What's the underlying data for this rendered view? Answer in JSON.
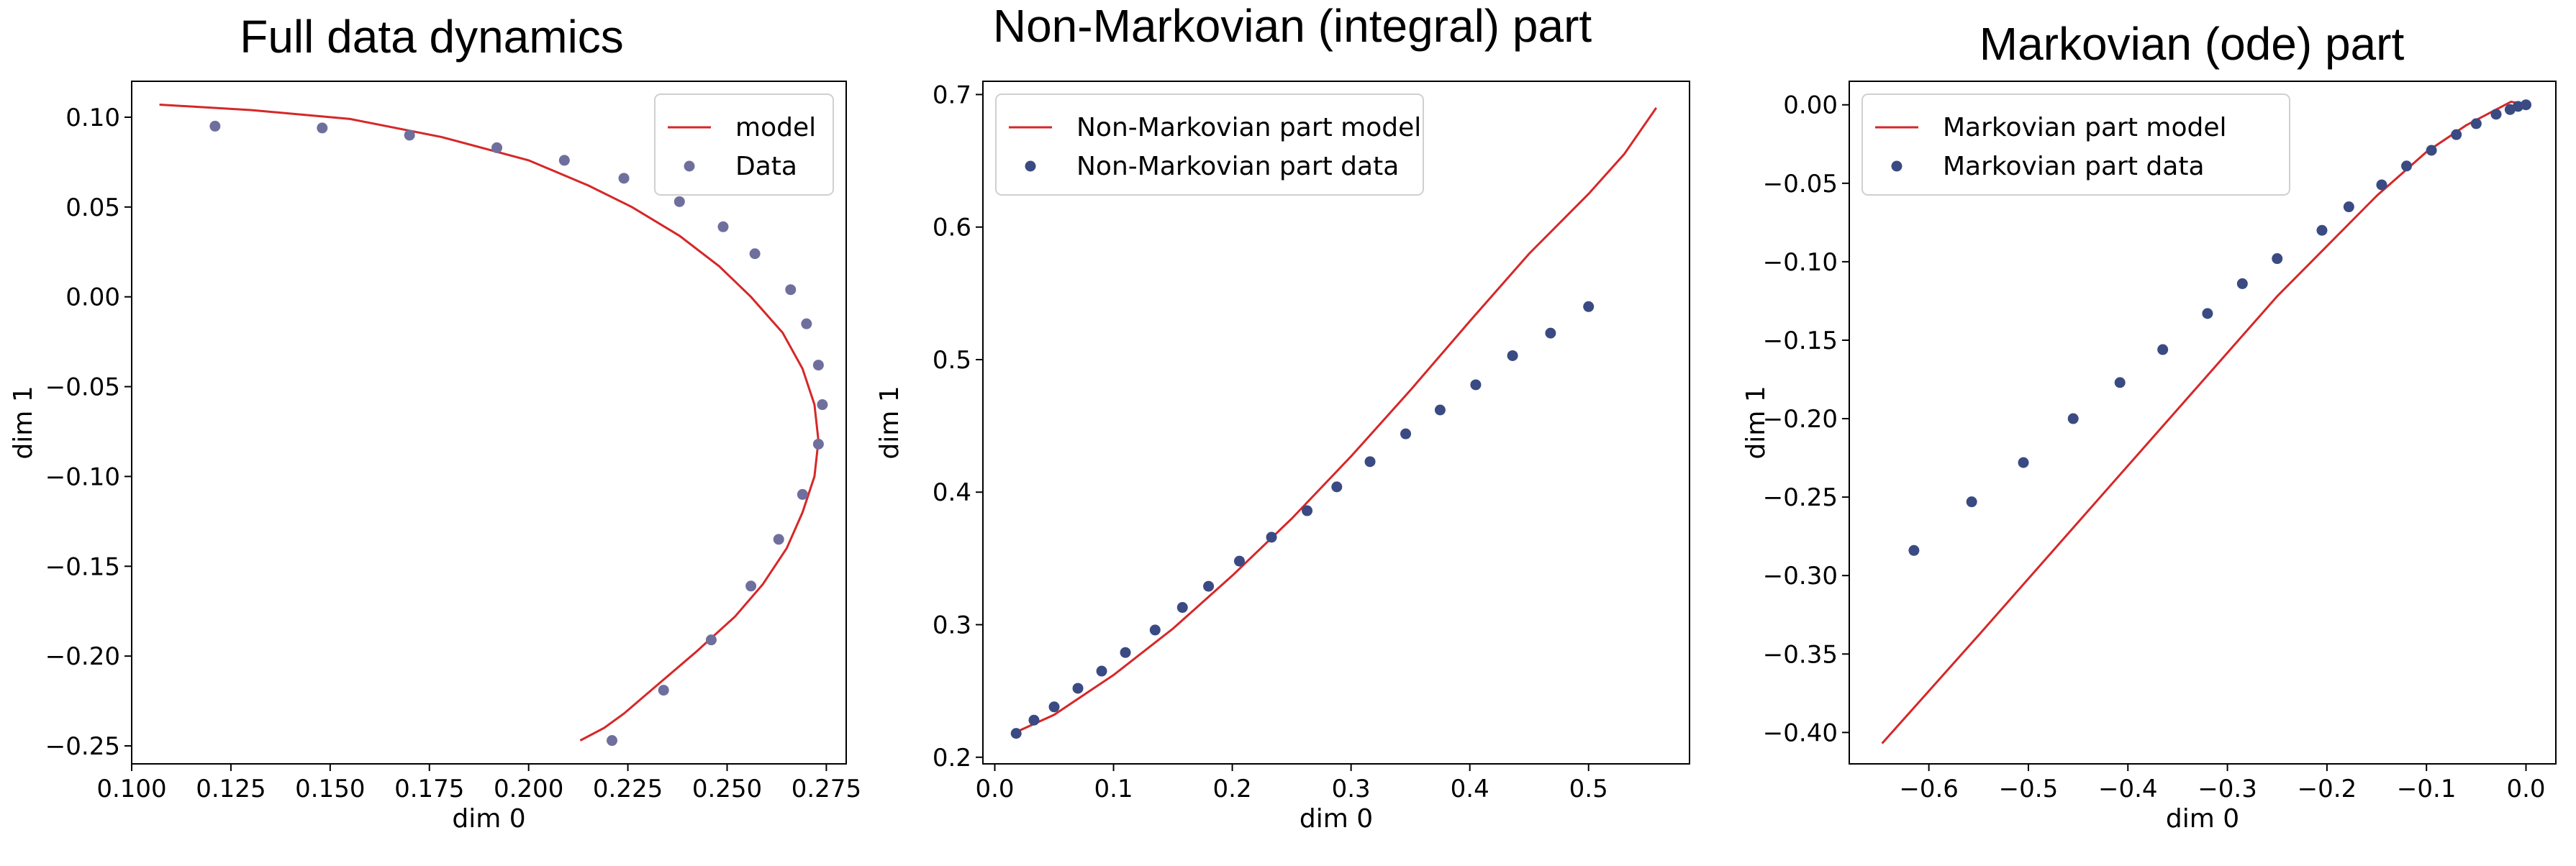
{
  "chart_data": [
    {
      "type": "scatter",
      "title": "Full data dynamics",
      "xlabel": "dim 0",
      "ylabel": "dim 1",
      "xlim": [
        0.1,
        0.28
      ],
      "ylim": [
        -0.26,
        0.12
      ],
      "xticks": [
        0.1,
        0.125,
        0.15,
        0.175,
        0.2,
        0.225,
        0.25,
        0.275
      ],
      "xtick_labels": [
        "0.100",
        "0.125",
        "0.150",
        "0.175",
        "0.200",
        "0.225",
        "0.250",
        "0.275"
      ],
      "yticks": [
        0.1,
        0.05,
        0.0,
        -0.05,
        -0.1,
        -0.15,
        -0.2,
        -0.25
      ],
      "ytick_labels": [
        "0.10",
        "0.05",
        "0.00",
        "−0.05",
        "−0.10",
        "−0.15",
        "−0.20",
        "−0.25"
      ],
      "grid": false,
      "legend_position": "top-right",
      "series": [
        {
          "name": "model",
          "kind": "line",
          "color": "#d62728",
          "points": [
            [
              0.107,
              0.107
            ],
            [
              0.13,
              0.104
            ],
            [
              0.155,
              0.099
            ],
            [
              0.178,
              0.089
            ],
            [
              0.2,
              0.076
            ],
            [
              0.215,
              0.062
            ],
            [
              0.226,
              0.05
            ],
            [
              0.238,
              0.034
            ],
            [
              0.248,
              0.017
            ],
            [
              0.256,
              0.0
            ],
            [
              0.264,
              -0.02
            ],
            [
              0.269,
              -0.04
            ],
            [
              0.272,
              -0.06
            ],
            [
              0.273,
              -0.08
            ],
            [
              0.272,
              -0.1
            ],
            [
              0.269,
              -0.12
            ],
            [
              0.265,
              -0.14
            ],
            [
              0.259,
              -0.16
            ],
            [
              0.252,
              -0.178
            ],
            [
              0.242,
              -0.198
            ],
            [
              0.233,
              -0.215
            ],
            [
              0.224,
              -0.232
            ],
            [
              0.219,
              -0.24
            ],
            [
              0.213,
              -0.247
            ]
          ]
        },
        {
          "name": "Data",
          "kind": "scatter",
          "color": "#6f6f9e",
          "points": [
            [
              0.121,
              0.095
            ],
            [
              0.148,
              0.094
            ],
            [
              0.17,
              0.09
            ],
            [
              0.192,
              0.083
            ],
            [
              0.209,
              0.076
            ],
            [
              0.224,
              0.066
            ],
            [
              0.238,
              0.053
            ],
            [
              0.249,
              0.039
            ],
            [
              0.257,
              0.024
            ],
            [
              0.266,
              0.004
            ],
            [
              0.27,
              -0.015
            ],
            [
              0.273,
              -0.038
            ],
            [
              0.274,
              -0.06
            ],
            [
              0.273,
              -0.082
            ],
            [
              0.269,
              -0.11
            ],
            [
              0.263,
              -0.135
            ],
            [
              0.256,
              -0.161
            ],
            [
              0.246,
              -0.191
            ],
            [
              0.234,
              -0.219
            ],
            [
              0.221,
              -0.247
            ]
          ]
        }
      ]
    },
    {
      "type": "scatter",
      "title": "Non-Markovian (integral) part",
      "xlabel": "dim 0",
      "ylabel": "dim 1",
      "xlim": [
        -0.01,
        0.585
      ],
      "ylim": [
        0.195,
        0.71
      ],
      "xticks": [
        0.0,
        0.1,
        0.2,
        0.3,
        0.4,
        0.5
      ],
      "xtick_labels": [
        "0.0",
        "0.1",
        "0.2",
        "0.3",
        "0.4",
        "0.5"
      ],
      "yticks": [
        0.2,
        0.3,
        0.4,
        0.5,
        0.6,
        0.7
      ],
      "ytick_labels": [
        "0.2",
        "0.3",
        "0.4",
        "0.5",
        "0.6",
        "0.7"
      ],
      "grid": false,
      "legend_position": "top-left",
      "series": [
        {
          "name": "Non-Markovian part model",
          "kind": "line",
          "color": "#d62728",
          "points": [
            [
              0.018,
              0.219
            ],
            [
              0.05,
              0.232
            ],
            [
              0.1,
              0.262
            ],
            [
              0.15,
              0.297
            ],
            [
              0.2,
              0.337
            ],
            [
              0.25,
              0.38
            ],
            [
              0.3,
              0.427
            ],
            [
              0.35,
              0.477
            ],
            [
              0.4,
              0.529
            ],
            [
              0.45,
              0.58
            ],
            [
              0.5,
              0.625
            ],
            [
              0.53,
              0.655
            ],
            [
              0.557,
              0.69
            ]
          ]
        },
        {
          "name": "Non-Markovian part data",
          "kind": "scatter",
          "color": "#3a4a82",
          "points": [
            [
              0.018,
              0.218
            ],
            [
              0.033,
              0.228
            ],
            [
              0.05,
              0.238
            ],
            [
              0.07,
              0.252
            ],
            [
              0.09,
              0.265
            ],
            [
              0.11,
              0.279
            ],
            [
              0.135,
              0.296
            ],
            [
              0.158,
              0.313
            ],
            [
              0.18,
              0.329
            ],
            [
              0.206,
              0.348
            ],
            [
              0.233,
              0.366
            ],
            [
              0.263,
              0.386
            ],
            [
              0.288,
              0.404
            ],
            [
              0.316,
              0.423
            ],
            [
              0.346,
              0.444
            ],
            [
              0.375,
              0.462
            ],
            [
              0.405,
              0.481
            ],
            [
              0.436,
              0.503
            ],
            [
              0.468,
              0.52
            ],
            [
              0.5,
              0.54
            ]
          ]
        }
      ]
    },
    {
      "type": "scatter",
      "title": "Markovian (ode) part",
      "xlabel": "dim 0",
      "ylabel": "dim 1",
      "xlim": [
        -0.68,
        0.03
      ],
      "ylim": [
        -0.42,
        0.015
      ],
      "xticks": [
        -0.6,
        -0.5,
        -0.4,
        -0.3,
        -0.2,
        -0.1,
        0.0
      ],
      "xtick_labels": [
        "−0.6",
        "−0.5",
        "−0.4",
        "−0.3",
        "−0.2",
        "−0.1",
        "0.0"
      ],
      "yticks": [
        0.0,
        -0.05,
        -0.1,
        -0.15,
        -0.2,
        -0.25,
        -0.3,
        -0.35,
        -0.4
      ],
      "ytick_labels": [
        "0.00",
        "−0.05",
        "−0.10",
        "−0.15",
        "−0.20",
        "−0.25",
        "−0.30",
        "−0.35",
        "−0.40"
      ],
      "grid": false,
      "legend_position": "top-left",
      "series": [
        {
          "name": "Markovian part model",
          "kind": "line",
          "color": "#d62728",
          "points": [
            [
              -0.647,
              -0.407
            ],
            [
              -0.55,
              -0.338
            ],
            [
              -0.45,
              -0.266
            ],
            [
              -0.35,
              -0.194
            ],
            [
              -0.25,
              -0.122
            ],
            [
              -0.15,
              -0.058
            ],
            [
              -0.1,
              -0.03
            ],
            [
              -0.06,
              -0.013
            ],
            [
              -0.03,
              -0.003
            ],
            [
              -0.015,
              0.002
            ],
            [
              0.0,
              0.0
            ]
          ]
        },
        {
          "name": "Markovian part data",
          "kind": "scatter",
          "color": "#3a4a82",
          "points": [
            [
              -0.615,
              -0.284
            ],
            [
              -0.557,
              -0.253
            ],
            [
              -0.505,
              -0.228
            ],
            [
              -0.455,
              -0.2
            ],
            [
              -0.408,
              -0.177
            ],
            [
              -0.365,
              -0.156
            ],
            [
              -0.32,
              -0.133
            ],
            [
              -0.285,
              -0.114
            ],
            [
              -0.25,
              -0.098
            ],
            [
              -0.205,
              -0.08
            ],
            [
              -0.178,
              -0.065
            ],
            [
              -0.145,
              -0.051
            ],
            [
              -0.12,
              -0.039
            ],
            [
              -0.095,
              -0.029
            ],
            [
              -0.07,
              -0.019
            ],
            [
              -0.05,
              -0.012
            ],
            [
              -0.03,
              -0.006
            ],
            [
              -0.016,
              -0.003
            ],
            [
              -0.008,
              -0.001
            ],
            [
              0.0,
              0.0
            ]
          ]
        }
      ]
    }
  ]
}
